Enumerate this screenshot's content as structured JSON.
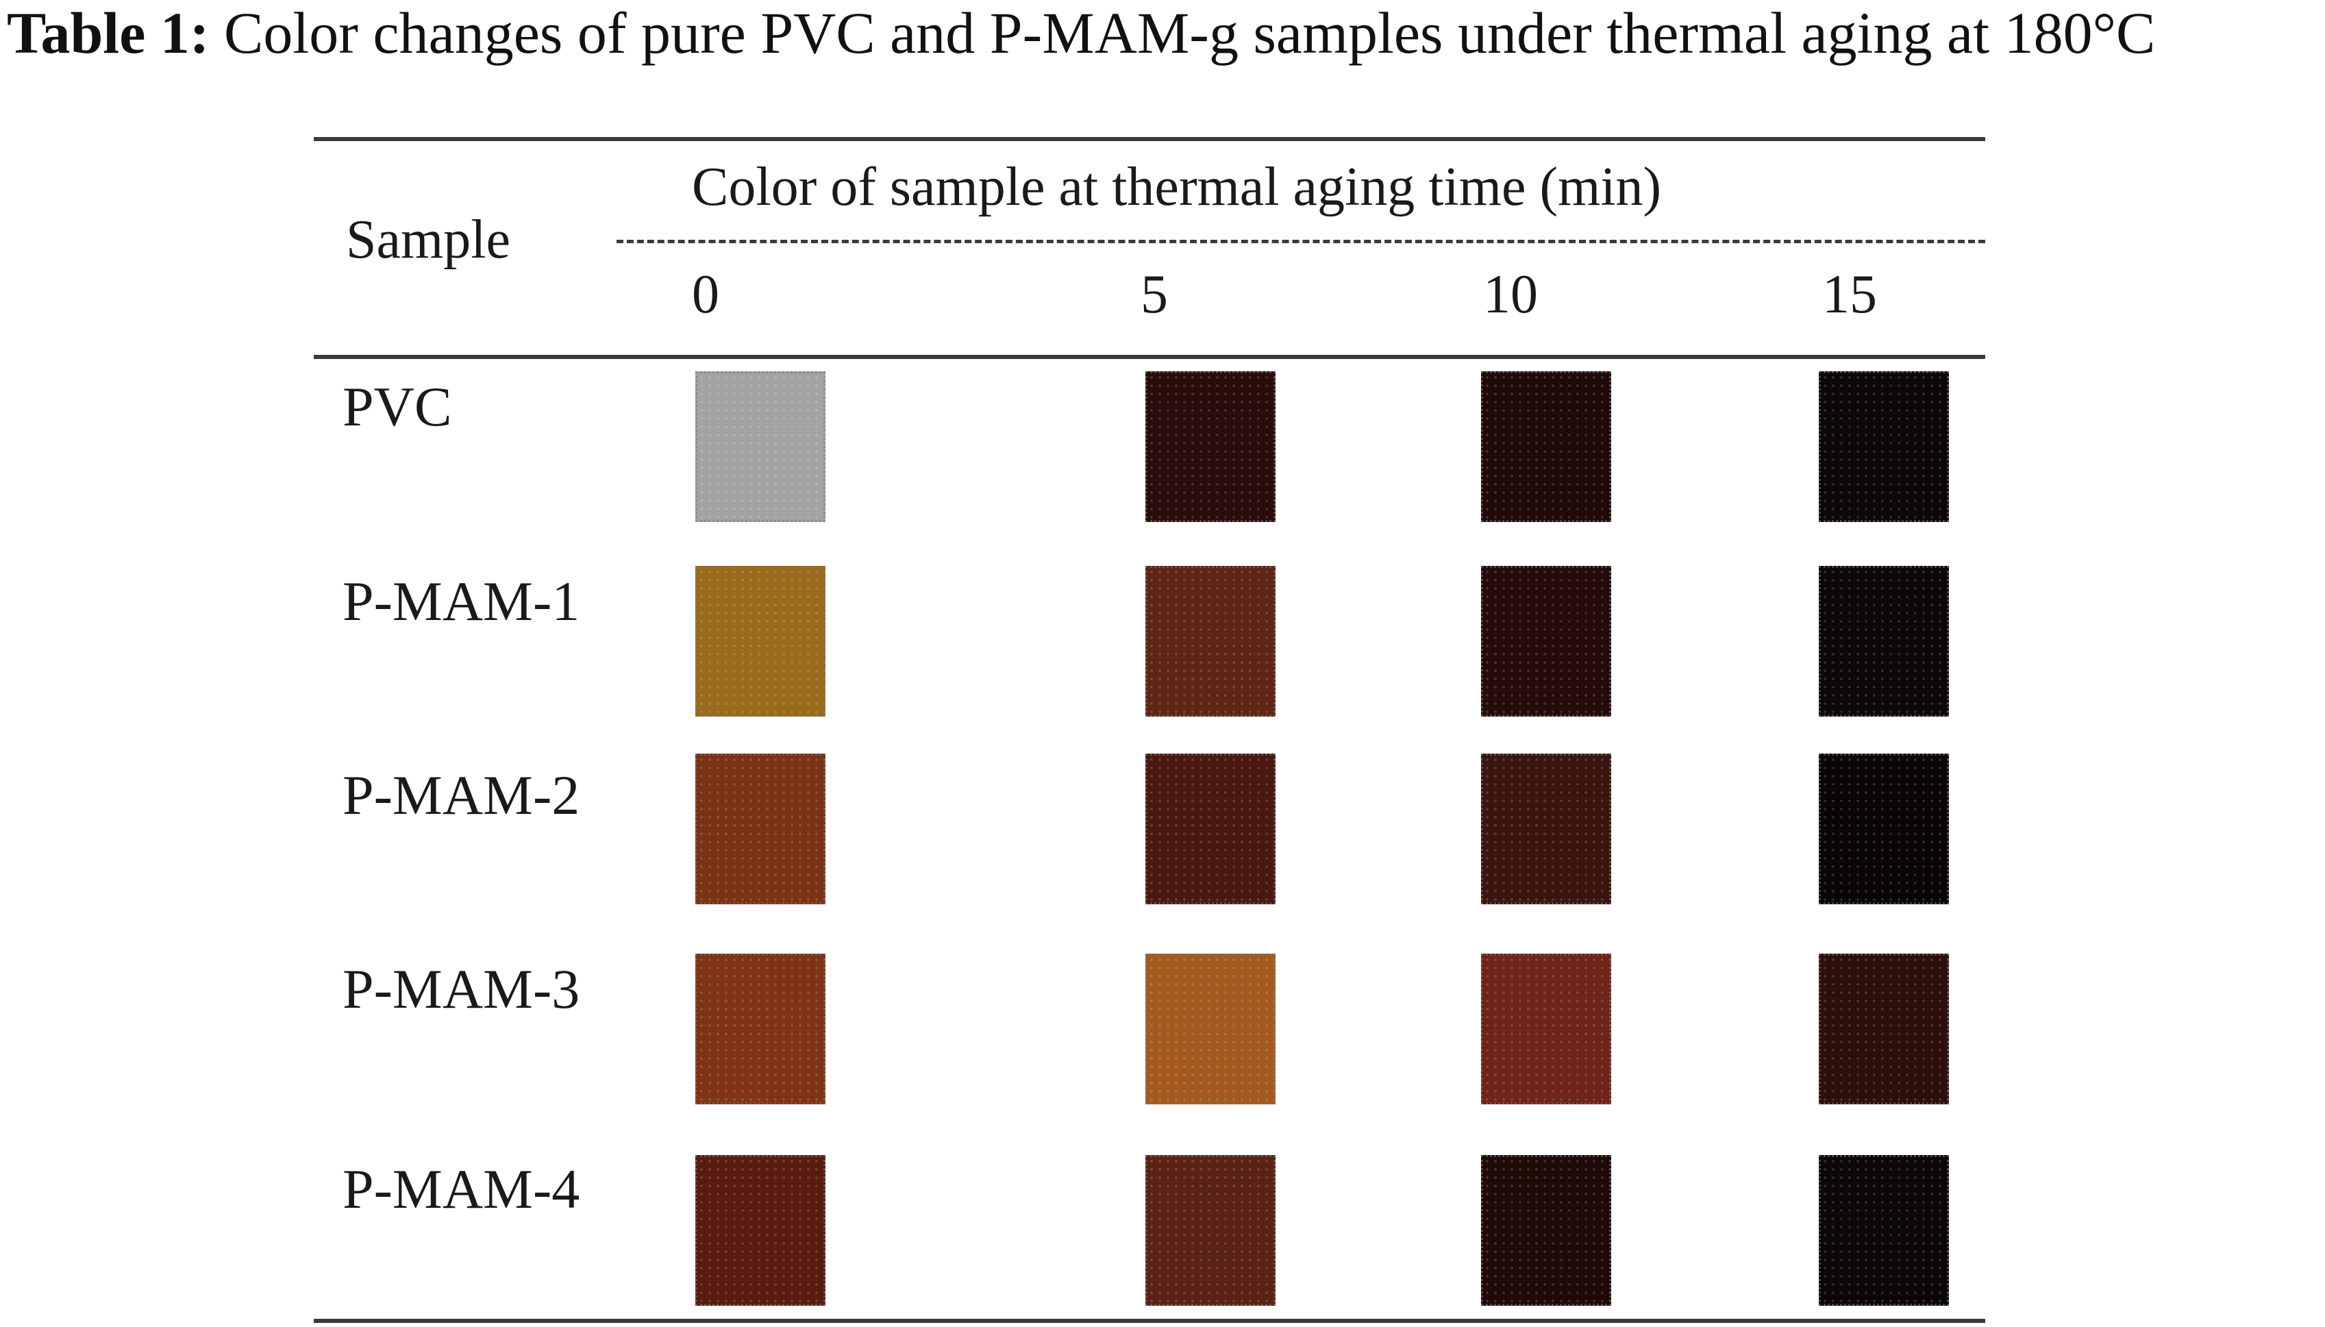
{
  "caption": {
    "label": "Table 1:",
    "text": "Color changes of pure PVC and P-MAM-g samples under thermal aging at 180°C"
  },
  "table": {
    "sample_header": "Sample",
    "group_header": "Color of sample at thermal aging time (min)",
    "time_headers": [
      "0",
      "5",
      "10",
      "15"
    ],
    "rows": [
      {
        "label": "PVC",
        "colors": [
          "#a3a3a3",
          "#2a0c0a",
          "#200a08",
          "#0c0606"
        ]
      },
      {
        "label": "P-MAM-1",
        "colors": [
          "#9a6a1c",
          "#5e2414",
          "#220b08",
          "#0c0606"
        ]
      },
      {
        "label": "P-MAM-2",
        "colors": [
          "#7a3214",
          "#4a1810",
          "#3a140e",
          "#0a0606"
        ]
      },
      {
        "label": "P-MAM-3",
        "colors": [
          "#7e3414",
          "#a45a1e",
          "#6e2218",
          "#2e0e0a"
        ]
      },
      {
        "label": "P-MAM-4",
        "colors": [
          "#5a1c10",
          "#5a2214",
          "#200a08",
          "#0c0606"
        ]
      }
    ]
  }
}
